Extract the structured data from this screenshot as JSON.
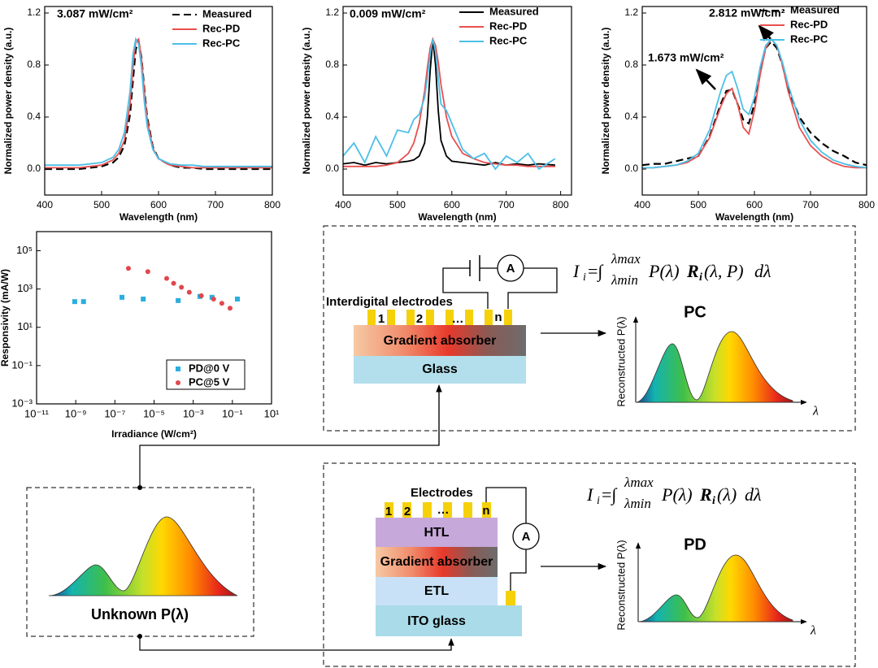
{
  "chart_data": [
    {
      "type": "line",
      "x": [
        400,
        420,
        440,
        460,
        480,
        500,
        520,
        530,
        540,
        550,
        555,
        560,
        565,
        570,
        575,
        580,
        590,
        600,
        620,
        640,
        660,
        680,
        700,
        740,
        780,
        800
      ],
      "series": [
        {
          "name": "Measured",
          "color": "#000000",
          "style": "dashed",
          "values": [
            0,
            0,
            0,
            0,
            0.01,
            0.02,
            0.05,
            0.09,
            0.18,
            0.42,
            0.68,
            0.92,
            0.98,
            0.86,
            0.62,
            0.4,
            0.17,
            0.08,
            0.03,
            0.01,
            0.01,
            0,
            0,
            0,
            0,
            0
          ]
        },
        {
          "name": "Rec-PD",
          "color": "#e8504f",
          "style": "solid",
          "values": [
            0.01,
            0.01,
            0.01,
            0.01,
            0.02,
            0.03,
            0.07,
            0.12,
            0.22,
            0.5,
            0.78,
            0.98,
            1.0,
            0.85,
            0.6,
            0.38,
            0.16,
            0.08,
            0.03,
            0.02,
            0.01,
            0.01,
            0.01,
            0.01,
            0.01,
            0.01
          ]
        },
        {
          "name": "Rec-PC",
          "color": "#4dbfe8",
          "style": "solid",
          "values": [
            0.03,
            0.03,
            0.03,
            0.03,
            0.04,
            0.05,
            0.09,
            0.15,
            0.28,
            0.6,
            0.88,
            1.0,
            0.96,
            0.78,
            0.52,
            0.33,
            0.15,
            0.08,
            0.04,
            0.03,
            0.03,
            0.02,
            0.02,
            0.02,
            0.02,
            0.02
          ]
        }
      ],
      "xlim": [
        400,
        800
      ],
      "xticks": [
        400,
        500,
        600,
        700,
        800
      ],
      "ylim": [
        -0.2,
        1.25
      ],
      "yticks": [
        {
          "value": 0,
          "label": "0.0"
        },
        0.4,
        0.8,
        1.2
      ],
      "x_label": "Wavelength (nm)",
      "y_label": "Normalized power density (a.u.)",
      "annotations": [
        "3.087 mW/cm²"
      ]
    },
    {
      "type": "line",
      "x": [
        400,
        420,
        440,
        460,
        480,
        500,
        520,
        530,
        540,
        550,
        555,
        560,
        565,
        570,
        575,
        580,
        590,
        600,
        620,
        640,
        660,
        680,
        700,
        720,
        740,
        760,
        790
      ],
      "series": [
        {
          "name": "Measured",
          "color": "#000000",
          "style": "solid",
          "values": [
            0.04,
            0.05,
            0.03,
            0.05,
            0.04,
            0.05,
            0.06,
            0.07,
            0.1,
            0.2,
            0.4,
            0.75,
            1.0,
            0.8,
            0.45,
            0.22,
            0.1,
            0.06,
            0.05,
            0.04,
            0.03,
            0.05,
            0.03,
            0.04,
            0.03,
            0.04,
            0.03
          ]
        },
        {
          "name": "Rec-PD",
          "color": "#e8504f",
          "style": "solid",
          "values": [
            0.02,
            0.02,
            0.02,
            0.02,
            0.03,
            0.05,
            0.12,
            0.2,
            0.35,
            0.6,
            0.78,
            0.93,
            1.0,
            0.95,
            0.82,
            0.65,
            0.4,
            0.25,
            0.12,
            0.08,
            0.05,
            0.04,
            0.03,
            0.03,
            0.02,
            0.02,
            0.02
          ]
        },
        {
          "name": "Rec-PC",
          "color": "#4dbfe8",
          "style": "solid",
          "values": [
            0.1,
            0.2,
            0.05,
            0.25,
            0.1,
            0.3,
            0.28,
            0.38,
            0.42,
            0.55,
            0.7,
            0.88,
            1.0,
            0.9,
            0.7,
            0.5,
            0.45,
            0.35,
            0.15,
            0.08,
            0.12,
            0.0,
            0.1,
            0.05,
            0.12,
            0.0,
            0.08
          ]
        }
      ],
      "xlim": [
        400,
        820
      ],
      "xticks": [
        400,
        500,
        600,
        700,
        800
      ],
      "ylim": [
        -0.2,
        1.25
      ],
      "yticks": [
        {
          "value": 0,
          "label": "0.0"
        },
        0.4,
        0.8,
        1.2
      ],
      "x_label": "Wavelength (nm)",
      "y_label": "Normalized power density (a.u.)",
      "annotations": [
        "0.009 mW/cm²"
      ]
    },
    {
      "type": "line",
      "x": [
        400,
        420,
        440,
        460,
        480,
        500,
        520,
        540,
        550,
        560,
        570,
        580,
        590,
        600,
        610,
        620,
        630,
        640,
        650,
        660,
        680,
        700,
        720,
        740,
        760,
        780,
        800
      ],
      "series": [
        {
          "name": "Measured",
          "color": "#000000",
          "style": "dashed",
          "values": [
            0.03,
            0.04,
            0.04,
            0.06,
            0.08,
            0.1,
            0.25,
            0.5,
            0.6,
            0.61,
            0.5,
            0.38,
            0.35,
            0.5,
            0.75,
            0.93,
            0.98,
            0.93,
            0.8,
            0.62,
            0.4,
            0.28,
            0.2,
            0.14,
            0.1,
            0.05,
            0.03
          ]
        },
        {
          "name": "Rec-PD",
          "color": "#e8504f",
          "style": "solid",
          "values": [
            0.01,
            0.01,
            0.02,
            0.03,
            0.05,
            0.1,
            0.24,
            0.48,
            0.58,
            0.62,
            0.5,
            0.32,
            0.27,
            0.45,
            0.72,
            0.93,
            1.0,
            0.95,
            0.8,
            0.6,
            0.32,
            0.18,
            0.1,
            0.05,
            0.02,
            0.01,
            0.01
          ]
        },
        {
          "name": "Rec-PC",
          "color": "#4dbfe8",
          "style": "solid",
          "values": [
            0.01,
            0.01,
            0.02,
            0.03,
            0.06,
            0.12,
            0.3,
            0.6,
            0.72,
            0.75,
            0.62,
            0.46,
            0.42,
            0.55,
            0.78,
            0.95,
            1.0,
            0.95,
            0.82,
            0.65,
            0.38,
            0.22,
            0.13,
            0.07,
            0.04,
            0.02,
            0.01
          ]
        }
      ],
      "xlim": [
        400,
        800
      ],
      "xticks": [
        400,
        500,
        600,
        700,
        800
      ],
      "ylim": [
        -0.2,
        1.25
      ],
      "yticks": [
        {
          "value": 0,
          "label": "0.0"
        },
        0.4,
        0.8,
        1.2
      ],
      "x_label": "Wavelength (nm)",
      "y_label": "Normalized power density (a.u.)",
      "annotations": [
        "2.812 mW/cm²",
        "1.673 mW/cm²"
      ]
    },
    {
      "type": "scatter",
      "xscale": "log",
      "yscale": "log",
      "series": [
        {
          "name": "PD@0 V",
          "color": "#29aee0",
          "marker": "square",
          "x": [
            8.9e-10,
            2.5e-09,
            2.3e-07,
            2.8e-06,
            0.00017,
            0.0022,
            0.0091,
            0.18
          ],
          "values": [
            220,
            220,
            370,
            300,
            250,
            410,
            370,
            300
          ]
        },
        {
          "name": "PC@5 V",
          "color": "#e0474c",
          "marker": "circle",
          "x": [
            4.9e-07,
            4.8e-06,
            4.4e-05,
            0.0001,
            0.00025,
            0.00063,
            0.0026,
            0.011,
            0.029,
            0.076
          ],
          "values": [
            12000,
            8100,
            3600,
            2000,
            1230,
            680,
            450,
            300,
            180,
            100
          ]
        }
      ],
      "xlim": [
        1e-11,
        10
      ],
      "xticks": [
        {
          "value": 1e-11,
          "label": "10⁻¹¹"
        },
        {
          "value": 1e-09,
          "label": "10⁻⁹"
        },
        {
          "value": 1e-07,
          "label": "10⁻⁷"
        },
        {
          "value": 1e-05,
          "label": "10⁻⁵"
        },
        {
          "value": 0.001,
          "label": "10⁻³"
        },
        {
          "value": 0.1,
          "label": "10⁻¹"
        },
        {
          "value": 10,
          "label": "10¹"
        }
      ],
      "ylim": [
        0.001,
        1000000
      ],
      "yticks": [
        {
          "value": 0.001,
          "label": "10⁻³"
        },
        {
          "value": 0.1,
          "label": "10⁻¹"
        },
        {
          "value": 10,
          "label": "10¹"
        },
        {
          "value": 1000,
          "label": "10³"
        },
        {
          "value": 100000,
          "label": "10⁵"
        }
      ],
      "x_label": "Irradiance (W/cm²)",
      "y_label": "Responsivity (mA/W)"
    }
  ],
  "pc_panel": {
    "electrodes_label": "Interdigital electrodes",
    "electrode_numbers": [
      "1",
      "2",
      "…",
      "n"
    ],
    "layers": [
      "Gradient absorber",
      "Glass"
    ],
    "ammeter": "A",
    "equation": {
      "lhs": "I",
      "lhs_sub": "i",
      "integral": "=∫",
      "upper": "λmax",
      "lower": "λmin",
      "body": "P(λ)",
      "bold": "R",
      "bold_sub": "i",
      "args": "(λ, P)",
      "end": "dλ"
    },
    "output_label": "PC",
    "y_axis": "Reconstructed P(λ)",
    "x_axis": "λ"
  },
  "pd_panel": {
    "electrodes_label": "Electrodes",
    "electrode_numbers": [
      "1",
      "2",
      "…",
      "n"
    ],
    "layers": [
      "HTL",
      "Gradient absorber",
      "ETL",
      "ITO glass"
    ],
    "ammeter": "A",
    "equation": {
      "lhs": "I",
      "lhs_sub": "i",
      "integral": "=∫",
      "upper": "λmax",
      "lower": "λmin",
      "body": "P(λ)",
      "bold": "R",
      "bold_sub": "i",
      "args": "(λ)",
      "end": "dλ"
    },
    "output_label": "PD",
    "y_axis": "Reconstructed P(λ)",
    "x_axis": "λ"
  },
  "unknown_panel": {
    "label": "Unknown P(λ)"
  }
}
